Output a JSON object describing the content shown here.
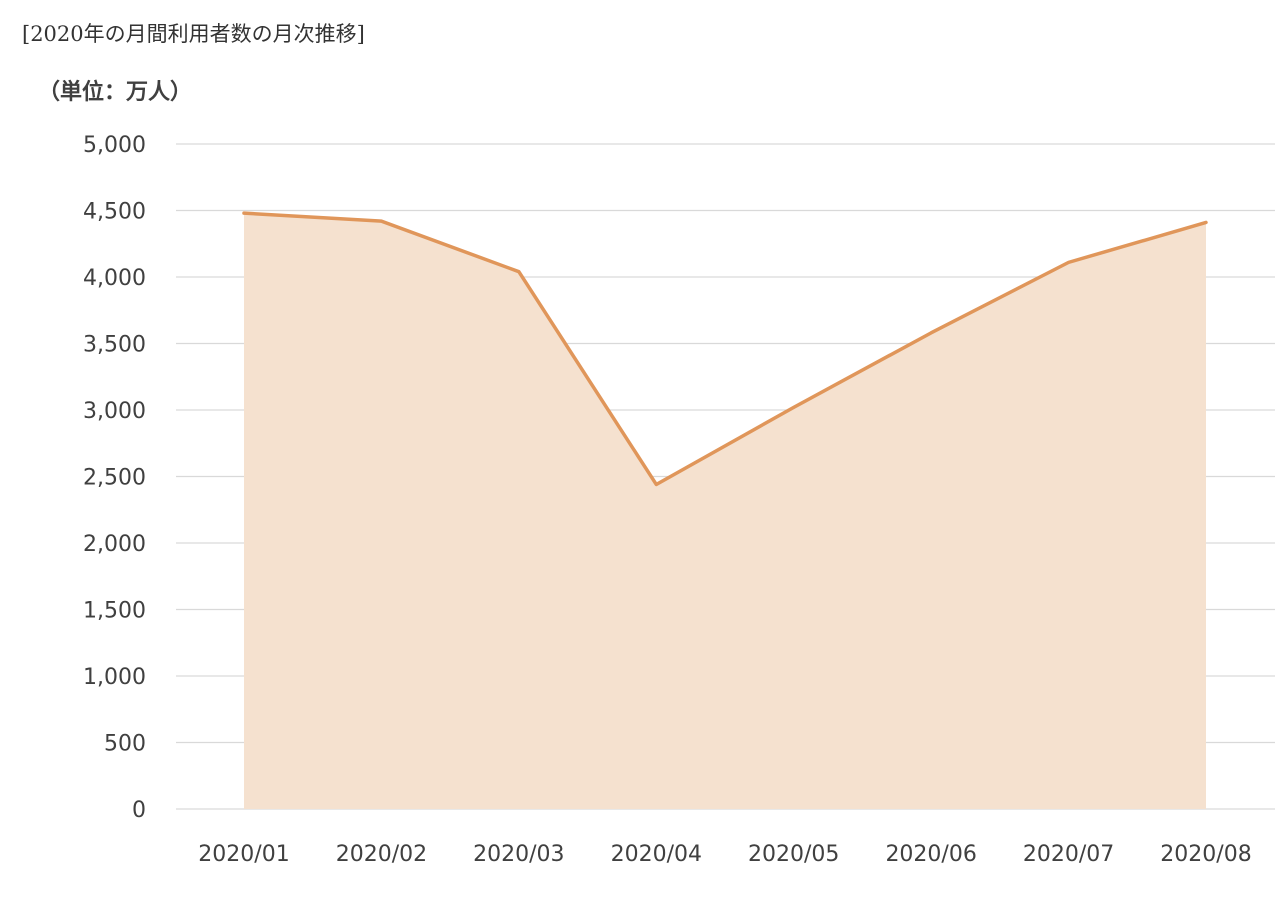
{
  "caption": "[2020年の月間利用者数の月次推移]",
  "colors": {
    "line": "#e0965a",
    "fill": "#f5e1cf",
    "grid": "#d9d9d9",
    "text": "#404040"
  },
  "chart_data": {
    "type": "area",
    "title": "",
    "ylabel": "（単位：万人）",
    "xlabel": "",
    "categories": [
      "2020/01",
      "2020/02",
      "2020/03",
      "2020/04",
      "2020/05",
      "2020/06",
      "2020/07",
      "2020/08"
    ],
    "series": [
      {
        "values": [
          4480,
          4420,
          4040,
          2440,
          3020,
          3580,
          4110,
          4410
        ]
      }
    ],
    "ylim": [
      0,
      5000
    ],
    "yticks": [
      0,
      500,
      1000,
      1500,
      2000,
      2500,
      3000,
      3500,
      4000,
      4500,
      5000
    ],
    "ytick_labels": [
      "0",
      "500",
      "1,000",
      "1,500",
      "2,000",
      "2,500",
      "3,000",
      "3,500",
      "4,000",
      "4,500",
      "5,000"
    ],
    "grid": true,
    "legend": "none"
  }
}
